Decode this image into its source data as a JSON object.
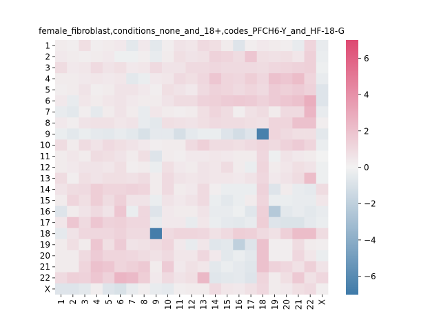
{
  "chart_data": {
    "type": "heatmap",
    "title": "female_fibroblast,conditions_none_and_18+,codes_PFCH6-Y_and_HF-18-G",
    "row_labels": [
      "1",
      "2",
      "3",
      "4",
      "5",
      "6",
      "7",
      "8",
      "9",
      "10",
      "11",
      "12",
      "13",
      "14",
      "15",
      "16",
      "17",
      "18",
      "19",
      "20",
      "21",
      "22",
      "X"
    ],
    "col_labels": [
      "1",
      "2",
      "3",
      "4",
      "5",
      "6",
      "7",
      "8",
      "9",
      "10",
      "11",
      "12",
      "13",
      "14",
      "15",
      "16",
      "17",
      "18",
      "19",
      "20",
      "21",
      "22",
      "X"
    ],
    "colorbar": {
      "min": -7,
      "max": 7,
      "ticks": [
        -6,
        -4,
        -2,
        0,
        2,
        4,
        6
      ],
      "tick_labels": [
        "−6",
        "−4",
        "−2",
        "0",
        "2",
        "4",
        "6"
      ],
      "low_color": "#3f7aa8",
      "mid_color": "#f2f2f2",
      "high_color": "#de4871"
    },
    "values": [
      [
        0.3,
        0.2,
        0.8,
        0.2,
        0.3,
        0.4,
        -0.6,
        0.4,
        -0.6,
        0.2,
        0.6,
        0.5,
        1.0,
        0.8,
        0.3,
        -0.8,
        0.2,
        0.4,
        0.3,
        0.2,
        -0.4,
        1.2,
        -0.4
      ],
      [
        0.4,
        0.3,
        0.2,
        0.3,
        0.4,
        -0.2,
        -0.2,
        0.2,
        -0.4,
        0.3,
        0.8,
        0.6,
        0.7,
        1.3,
        1.2,
        0.9,
        1.8,
        0.8,
        0.7,
        0.8,
        0.5,
        1.4,
        -0.3
      ],
      [
        0.9,
        0.4,
        0.5,
        1.0,
        0.6,
        0.8,
        0.4,
        0.5,
        1.0,
        0.6,
        0.6,
        1.0,
        1.0,
        1.1,
        1.0,
        1.0,
        1.0,
        0.9,
        1.1,
        1.2,
        1.3,
        1.4,
        -0.2
      ],
      [
        0.3,
        0.3,
        0.4,
        0.5,
        0.4,
        0.5,
        -0.6,
        -0.3,
        0.4,
        0.5,
        1.0,
        0.8,
        1.1,
        1.8,
        1.2,
        1.1,
        1.5,
        1.1,
        2.0,
        1.8,
        2.2,
        1.2,
        -0.4
      ],
      [
        0.2,
        0.3,
        0.6,
        0.2,
        0.3,
        0.6,
        0.6,
        0.4,
        0.2,
        0.8,
        0.6,
        0.4,
        1.0,
        1.3,
        1.2,
        1.0,
        1.2,
        1.0,
        1.6,
        1.4,
        1.6,
        1.3,
        -0.8
      ],
      [
        0.4,
        -0.4,
        0.5,
        0.3,
        0.5,
        0.6,
        0.4,
        0.3,
        0.3,
        0.6,
        0.9,
        0.9,
        1.3,
        1.4,
        1.6,
        1.7,
        1.6,
        1.3,
        1.6,
        1.8,
        2.0,
        2.8,
        -0.8
      ],
      [
        -0.4,
        -0.6,
        0.2,
        -0.5,
        0.3,
        0.6,
        0.3,
        -0.4,
        0.5,
        0.3,
        0.2,
        0.3,
        0.8,
        1.2,
        0.9,
        0.2,
        0.7,
        0.9,
        0.3,
        1.0,
        1.0,
        2.5,
        -0.4
      ],
      [
        0.4,
        0.2,
        0.6,
        0.7,
        0.7,
        0.5,
        0.6,
        -0.4,
        -0.6,
        0.8,
        0.7,
        0.6,
        0.8,
        1.0,
        0.9,
        0.9,
        0.8,
        0.7,
        1.2,
        1.2,
        2.0,
        2.0,
        0.2
      ],
      [
        -0.3,
        -0.6,
        -0.3,
        -0.5,
        -0.6,
        -0.4,
        -0.6,
        -1.0,
        -0.5,
        -0.5,
        -1.1,
        -0.5,
        -0.3,
        -0.3,
        -0.8,
        -1.2,
        -0.8,
        -6.6,
        1.2,
        1.0,
        0.8,
        0.8,
        -0.6
      ],
      [
        0.9,
        0.3,
        0.9,
        0.6,
        1.0,
        0.8,
        0.6,
        0.4,
        0.2,
        0.3,
        0.3,
        1.0,
        1.4,
        0.9,
        0.9,
        0.8,
        1.0,
        1.2,
        1.0,
        1.3,
        1.6,
        1.2,
        -0.3
      ],
      [
        0.3,
        0.5,
        0.3,
        0.9,
        0.8,
        0.6,
        0.3,
        0.8,
        -0.8,
        0.3,
        0.2,
        0.4,
        0.4,
        0.5,
        0.4,
        0.3,
        0.3,
        1.1,
        -0.2,
        0.6,
        0.4,
        0.3,
        0.0
      ],
      [
        0.3,
        0.4,
        0.6,
        0.6,
        0.5,
        0.8,
        0.2,
        0.3,
        -0.3,
        0.8,
        0.4,
        0.3,
        0.6,
        0.5,
        0.9,
        0.3,
        -0.3,
        1.2,
        0.3,
        0.5,
        0.8,
        0.6,
        -0.2
      ],
      [
        0.9,
        0.2,
        0.8,
        0.6,
        0.8,
        0.8,
        0.7,
        0.9,
        0.3,
        1.0,
        0.6,
        0.5,
        0.6,
        0.5,
        0.5,
        0.4,
        0.6,
        1.1,
        0.4,
        0.6,
        0.9,
        2.2,
        -0.2
      ],
      [
        0.6,
        0.9,
        1.0,
        1.5,
        1.2,
        1.2,
        1.3,
        1.2,
        0.3,
        1.0,
        0.3,
        0.4,
        1.0,
        0.2,
        -0.3,
        -0.3,
        -0.3,
        1.3,
        -0.8,
        0.3,
        -0.4,
        -0.5,
        0.9
      ],
      [
        0.3,
        1.2,
        0.8,
        1.5,
        0.9,
        1.4,
        0.6,
        0.6,
        -0.3,
        0.6,
        0.4,
        0.6,
        1.0,
        -0.3,
        -0.6,
        -0.3,
        0.3,
        1.2,
        -0.3,
        -0.3,
        -0.4,
        -0.4,
        0.5
      ],
      [
        -0.8,
        0.3,
        0.6,
        1.0,
        0.6,
        1.8,
        -0.3,
        1.1,
        -0.8,
        0.4,
        0.3,
        0.3,
        0.6,
        -0.4,
        -0.4,
        -0.2,
        -0.7,
        1.4,
        -2.4,
        -0.6,
        -0.4,
        -0.6,
        -0.4
      ],
      [
        0.5,
        1.8,
        1.0,
        1.8,
        1.3,
        1.4,
        1.1,
        1.1,
        -0.4,
        0.4,
        0.4,
        -0.4,
        0.5,
        -0.3,
        -0.5,
        -0.6,
        -0.4,
        1.5,
        -0.8,
        -0.9,
        -0.9,
        -0.5,
        -0.3
      ],
      [
        -0.5,
        0.6,
        1.1,
        1.1,
        1.1,
        1.3,
        1.0,
        1.0,
        -6.8,
        1.0,
        1.2,
        1.2,
        1.1,
        0.7,
        1.0,
        1.5,
        1.4,
        1.0,
        0.7,
        1.4,
        2.2,
        2.2,
        0.9
      ],
      [
        0.3,
        0.8,
        0.3,
        1.8,
        0.8,
        1.6,
        0.6,
        0.7,
        0.9,
        1.2,
        0.4,
        -0.4,
        0.5,
        -0.7,
        -0.6,
        -2.0,
        -0.8,
        2.0,
        0.2,
        0.2,
        0.9,
        0.3,
        0.2
      ],
      [
        0.3,
        0.3,
        1.0,
        1.6,
        1.2,
        1.2,
        1.1,
        0.9,
        0.7,
        1.0,
        0.5,
        0.5,
        1.1,
        0.4,
        -0.6,
        -0.3,
        -0.6,
        2.0,
        0.2,
        0.2,
        1.1,
        0.5,
        -0.3
      ],
      [
        0.3,
        0.3,
        1.2,
        2.0,
        1.8,
        1.2,
        1.4,
        1.7,
        0.3,
        1.6,
        0.4,
        0.7,
        0.5,
        -0.6,
        -0.3,
        -0.5,
        -0.7,
        2.0,
        1.3,
        1.1,
        0.7,
        1.4,
        0.6
      ],
      [
        1.0,
        1.4,
        1.3,
        1.8,
        1.3,
        2.5,
        2.3,
        1.5,
        0.4,
        1.0,
        0.6,
        0.8,
        2.4,
        -0.7,
        -0.6,
        -0.5,
        -0.8,
        1.2,
        0.3,
        0.8,
        1.7,
        0.7,
        1.1
      ],
      [
        -0.8,
        -0.8,
        -0.6,
        0.2,
        -0.8,
        -1.0,
        -0.4,
        0.2,
        -0.4,
        -0.5,
        0.2,
        0.3,
        0.3,
        1.0,
        0.5,
        0.4,
        0.7,
        1.1,
        0.3,
        0.4,
        0.8,
        1.0,
        0.2
      ]
    ]
  }
}
